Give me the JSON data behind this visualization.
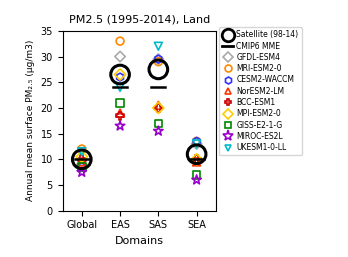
{
  "title": "PM2.5 (1995-2014), Land",
  "xlabel": "Domains",
  "ylabel": "Annual mean surface PM₂.₅ (μg/m3)",
  "domains": [
    "Global",
    "EAS",
    "SAS",
    "SEA"
  ],
  "xlim": [
    -0.5,
    3.5
  ],
  "ylim": [
    0,
    35
  ],
  "yticks": [
    0,
    5,
    10,
    15,
    20,
    25,
    30,
    35
  ],
  "satellite": [
    10.0,
    26.5,
    27.5,
    11.0
  ],
  "satellite_size": 180,
  "cmip6_mme": [
    10.0,
    24.0,
    24.0,
    10.0
  ],
  "models": {
    "GFDL-ESM4": {
      "color": "#aaaaaa",
      "marker": "D",
      "values": [
        9.0,
        30.0,
        29.5,
        13.0
      ]
    },
    "MRI-ESM2-0": {
      "color": "#ff8800",
      "marker": "o",
      "values": [
        12.0,
        33.0,
        29.0,
        13.5
      ]
    },
    "CESM2-WACCM": {
      "color": "#3333ff",
      "marker": "h",
      "values": [
        8.5,
        26.0,
        29.5,
        13.5
      ]
    },
    "NorESM2-LM": {
      "color": "#ff3300",
      "marker": "^",
      "values": [
        9.5,
        19.0,
        20.5,
        9.5
      ]
    },
    "BCC-ESM1": {
      "color": "#cc0000",
      "marker": "P",
      "values": [
        10.0,
        18.5,
        20.0,
        10.0
      ]
    },
    "MPI-ESM2-0": {
      "color": "#ffcc00",
      "marker": "D",
      "values": [
        10.5,
        26.5,
        20.0,
        10.0
      ]
    },
    "GISS-E2-1-G": {
      "color": "#008800",
      "marker": "s",
      "values": [
        8.5,
        21.0,
        17.0,
        7.0
      ]
    },
    "MIROC-ES2L": {
      "color": "#9900cc",
      "marker": "*",
      "values": [
        7.5,
        16.5,
        15.5,
        6.0
      ]
    },
    "UKESM1-0-LL": {
      "color": "#00bbcc",
      "marker": "v",
      "values": [
        11.5,
        24.0,
        32.0,
        13.0
      ]
    }
  },
  "background_color": "#ffffff"
}
